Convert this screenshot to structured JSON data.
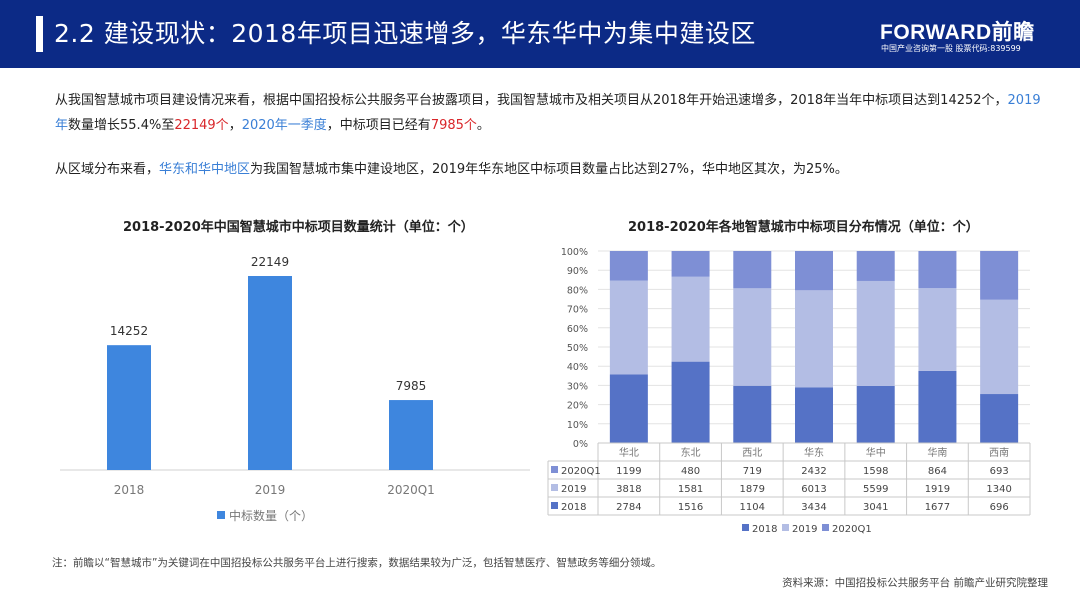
{
  "header": {
    "title": "2.2 建设现状：2018年项目迅速增多，华东华中为集中建设区",
    "logo": "FORWARD前瞻",
    "logo_sub": "中国产业咨询第一股  股票代码:839599",
    "bg_color": "#0c2a86"
  },
  "paragraphs": [
    [
      {
        "t": "从我国智慧城市项目建设情况来看，根据中国招投标公共服务平台披露项目，我国智慧城市及相关项目从2018年开始迅速增多，2018年当年中标项目达到14252个，",
        "c": ""
      },
      {
        "t": "2019年",
        "c": "blue"
      },
      {
        "t": "数量增长55.4%至",
        "c": ""
      },
      {
        "t": "22149个",
        "c": "red"
      },
      {
        "t": "，",
        "c": ""
      },
      {
        "t": "2020年一季度",
        "c": "blue"
      },
      {
        "t": "，中标项目已经有",
        "c": ""
      },
      {
        "t": "7985个",
        "c": "red"
      },
      {
        "t": "。",
        "c": ""
      }
    ],
    [
      {
        "t": "从区域分布来看，",
        "c": ""
      },
      {
        "t": "华东和华中地区",
        "c": "blue"
      },
      {
        "t": "为我国智慧城市集中建设地区，2019年华东地区中标项目数量占比达到27%，华中地区其次，为25%。",
        "c": ""
      }
    ]
  ],
  "chart_data": [
    {
      "type": "bar",
      "title": "2018-2020年中国智慧城市中标项目数量统计（单位：个）",
      "categories": [
        "2018",
        "2019",
        "2020Q1"
      ],
      "series": [
        {
          "name": "中标数量（个）",
          "values": [
            14252,
            22149,
            7985
          ],
          "color": "#3e86de"
        }
      ],
      "ylim": [
        0,
        24000
      ],
      "legend": "bottom",
      "grid": false
    },
    {
      "type": "bar",
      "stacked_percent": true,
      "title": "2018-2020年各地智慧城市中标项目分布情况（单位：个）",
      "categories": [
        "华北",
        "东北",
        "西北",
        "华东",
        "华中",
        "华南",
        "西南"
      ],
      "yticks": [
        "0%",
        "10%",
        "20%",
        "30%",
        "40%",
        "50%",
        "60%",
        "70%",
        "80%",
        "90%",
        "100%"
      ],
      "series": [
        {
          "name": "2018",
          "values": [
            2784,
            1516,
            1104,
            3434,
            3041,
            1677,
            696
          ],
          "color": "#5572c6"
        },
        {
          "name": "2019",
          "values": [
            3818,
            1581,
            1879,
            6013,
            5599,
            1919,
            1340
          ],
          "color": "#b3bde4"
        },
        {
          "name": "2020Q1",
          "values": [
            1199,
            480,
            719,
            2432,
            1598,
            864,
            693
          ],
          "color": "#7e8fd5"
        }
      ],
      "table_order": [
        "2020Q1",
        "2019",
        "2018"
      ],
      "legend": "bottom",
      "grid": true
    }
  ],
  "footer": {
    "note": "注：前瞻以“智慧城市”为关键词在中国招投标公共服务平台上进行搜索，数据结果较为广泛，包括智慧医疗、智慧政务等细分领域。",
    "source": "资料来源：中国招投标公共服务平台  前瞻产业研究院整理"
  }
}
